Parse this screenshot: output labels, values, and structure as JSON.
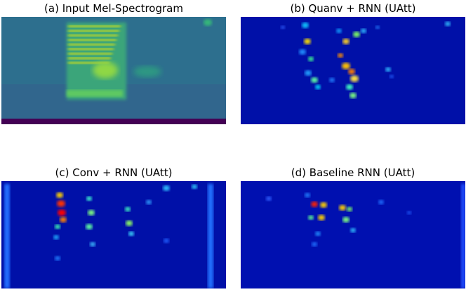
{
  "panels": [
    {
      "title": "(a) Input Mel-Spectrogram"
    },
    {
      "title": "(b) Quanv + RNN (UAtt)"
    },
    {
      "title": "(c) Conv + RNN (UAtt)"
    },
    {
      "title": "(d) Baseline RNN (UAtt)"
    }
  ]
}
